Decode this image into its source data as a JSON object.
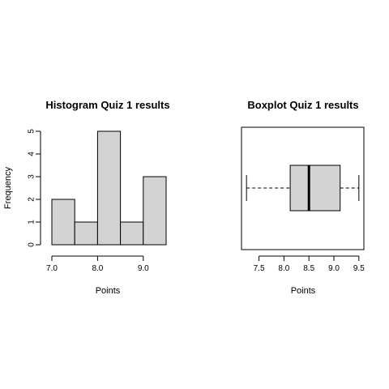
{
  "chart_data": [
    {
      "type": "histogram",
      "title": "Histogram Quiz 1 results",
      "xlabel": "Points",
      "ylabel": "Frequency",
      "bins": [
        {
          "from": 7.0,
          "to": 7.5,
          "count": 2
        },
        {
          "from": 7.5,
          "to": 8.0,
          "count": 1
        },
        {
          "from": 8.0,
          "to": 8.5,
          "count": 5
        },
        {
          "from": 8.5,
          "to": 9.0,
          "count": 1
        },
        {
          "from": 9.0,
          "to": 9.5,
          "count": 3
        }
      ],
      "xlim": [
        7.0,
        9.5
      ],
      "ylim": [
        0,
        5
      ],
      "xticks": [
        7.0,
        8.0,
        9.0
      ],
      "xtick_labels": [
        "7.0",
        "8.0",
        "9.0"
      ],
      "yticks": [
        0,
        1,
        2,
        3,
        4,
        5
      ],
      "ytick_labels": [
        "0",
        "1",
        "2",
        "3",
        "4",
        "5"
      ],
      "bar_fill": "#d3d3d3",
      "grid": false
    },
    {
      "type": "boxplot",
      "orientation": "horizontal",
      "title": "Boxplot Quiz 1 results",
      "xlabel": "Points",
      "stats": {
        "min": 7.25,
        "q1": 8.125,
        "median": 8.5,
        "q3": 9.125,
        "max": 9.5
      },
      "xlim": [
        7.15,
        9.6
      ],
      "xticks": [
        7.5,
        8.0,
        8.5,
        9.0,
        9.5
      ],
      "xtick_labels": [
        "7.5",
        "8.0",
        "8.5",
        "9.0",
        "9.5"
      ],
      "box_fill": "#d3d3d3",
      "grid": false
    }
  ]
}
